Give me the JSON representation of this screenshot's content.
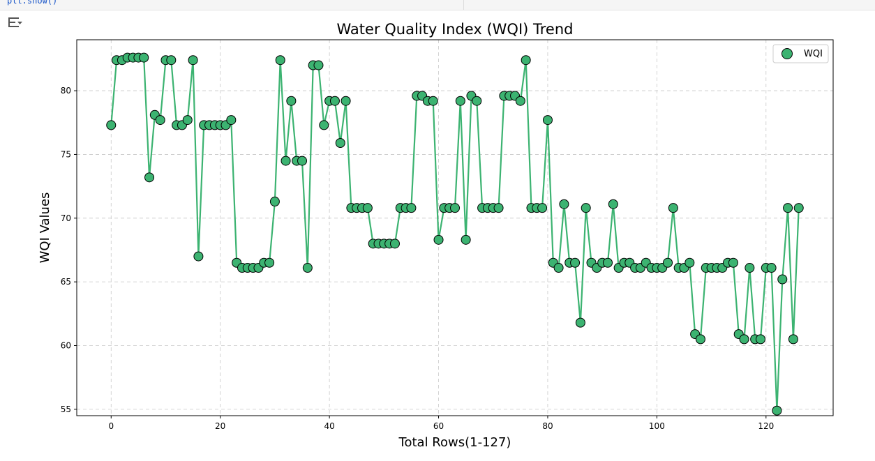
{
  "notebook": {
    "code_snippet": "plt.show()",
    "output_toggle_icon": "output-collapse-icon"
  },
  "chart_data": {
    "type": "line",
    "title": "Water Quality Index (WQI) Trend",
    "xlabel": "Total Rows(1-127)",
    "ylabel": "WQI Values",
    "xlim": [
      -6.3,
      132.3
    ],
    "ylim": [
      54.5,
      84.0
    ],
    "xticks": [
      0,
      20,
      40,
      60,
      80,
      100,
      120
    ],
    "yticks": [
      55,
      60,
      65,
      70,
      75,
      80
    ],
    "grid": true,
    "legend_placement": "top-right",
    "series": [
      {
        "name": "WQI",
        "color": "#3cb371",
        "marker_edge_color": "#000000",
        "x": [
          0,
          1,
          2,
          3,
          4,
          5,
          6,
          7,
          8,
          9,
          10,
          11,
          12,
          13,
          14,
          15,
          16,
          17,
          18,
          19,
          20,
          21,
          22,
          23,
          24,
          25,
          26,
          27,
          28,
          29,
          30,
          31,
          32,
          33,
          34,
          35,
          36,
          37,
          38,
          39,
          40,
          41,
          42,
          43,
          44,
          45,
          46,
          47,
          48,
          49,
          50,
          51,
          52,
          53,
          54,
          55,
          56,
          57,
          58,
          59,
          60,
          61,
          62,
          63,
          64,
          65,
          66,
          67,
          68,
          69,
          70,
          71,
          72,
          73,
          74,
          75,
          76,
          77,
          78,
          79,
          80,
          81,
          82,
          83,
          84,
          85,
          86,
          87,
          88,
          89,
          90,
          91,
          92,
          93,
          94,
          95,
          96,
          97,
          98,
          99,
          100,
          101,
          102,
          103,
          104,
          105,
          106,
          107,
          108,
          109,
          110,
          111,
          112,
          113,
          114,
          115,
          116,
          117,
          118,
          119,
          120,
          121,
          122,
          123,
          124,
          125,
          126
        ],
        "values": [
          77.3,
          82.4,
          82.4,
          82.6,
          82.6,
          82.6,
          82.6,
          73.2,
          78.1,
          77.7,
          82.4,
          82.4,
          77.3,
          77.3,
          77.7,
          82.4,
          67.0,
          77.3,
          77.3,
          77.3,
          77.3,
          77.3,
          77.7,
          66.5,
          66.1,
          66.1,
          66.1,
          66.1,
          66.5,
          66.5,
          71.3,
          82.4,
          74.5,
          79.2,
          74.5,
          74.5,
          66.1,
          82.0,
          82.0,
          77.3,
          79.2,
          79.2,
          75.9,
          79.2,
          70.8,
          70.8,
          70.8,
          70.8,
          68.0,
          68.0,
          68.0,
          68.0,
          68.0,
          70.8,
          70.8,
          70.8,
          79.6,
          79.6,
          79.2,
          79.2,
          68.3,
          70.8,
          70.8,
          70.8,
          79.2,
          68.3,
          79.6,
          79.2,
          70.8,
          70.8,
          70.8,
          70.8,
          79.6,
          79.6,
          79.6,
          79.2,
          82.4,
          70.8,
          70.8,
          70.8,
          77.7,
          66.5,
          66.1,
          71.1,
          66.5,
          66.5,
          61.8,
          70.8,
          66.5,
          66.1,
          66.5,
          66.5,
          71.1,
          66.1,
          66.5,
          66.5,
          66.1,
          66.1,
          66.5,
          66.1,
          66.1,
          66.1,
          66.5,
          70.8,
          66.1,
          66.1,
          66.5,
          60.9,
          60.5,
          66.1,
          66.1,
          66.1,
          66.1,
          66.5,
          66.5,
          60.9,
          60.5,
          66.1,
          60.5,
          60.5,
          66.1,
          66.1,
          54.9,
          65.2,
          70.8,
          60.5,
          70.8
        ]
      }
    ]
  }
}
